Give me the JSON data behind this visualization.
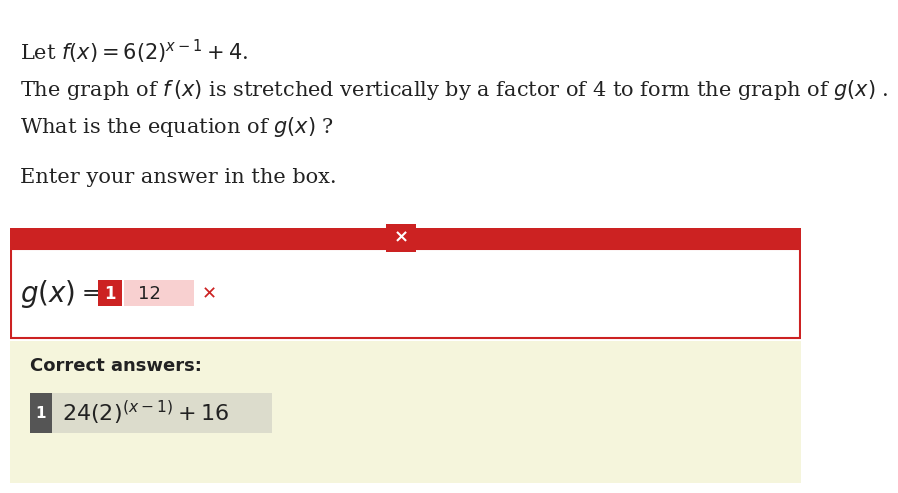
{
  "bg_color": "#ffffff",
  "text_color": "#222222",
  "line1": "Let $f(x) = 6(2)^{x-1} + 4$.",
  "line2": "The graph of $f\\,(x)$ is stretched vertically by a factor of 4 to form the graph of $g(x)$ .",
  "line3": "What is the equation of $g(x)$ ?",
  "enter_text": "Enter your answer in the box.",
  "red_color": "#cc2222",
  "answer_box_bg": "#ffffff",
  "gx_answer_label": "$g(x)$",
  "badge_red_bg": "#cc2222",
  "badge_red_text": "1",
  "user_answer": "12",
  "user_answer_bg": "#f8d0d0",
  "user_x_color": "#cc2222",
  "correct_section_bg": "#f5f5dc",
  "correct_label": "Correct answers:",
  "correct_badge_bg": "#555555",
  "correct_answer_bg": "#dcdccc",
  "correct_answer_text": "$24(2)^{(x-1)} + 16$",
  "main_fontsize": 15,
  "answer_gx_fontsize": 20
}
